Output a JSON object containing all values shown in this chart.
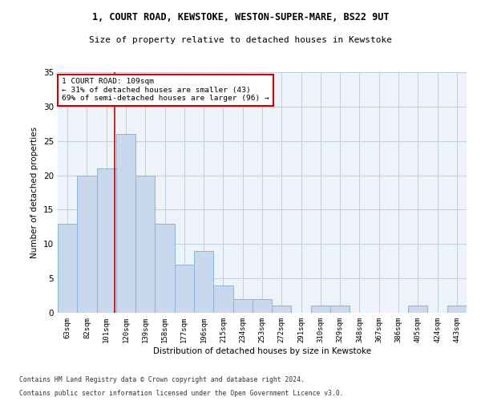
{
  "title1": "1, COURT ROAD, KEWSTOKE, WESTON-SUPER-MARE, BS22 9UT",
  "title2": "Size of property relative to detached houses in Kewstoke",
  "xlabel": "Distribution of detached houses by size in Kewstoke",
  "ylabel": "Number of detached properties",
  "categories": [
    "63sqm",
    "82sqm",
    "101sqm",
    "120sqm",
    "139sqm",
    "158sqm",
    "177sqm",
    "196sqm",
    "215sqm",
    "234sqm",
    "253sqm",
    "272sqm",
    "291sqm",
    "310sqm",
    "329sqm",
    "348sqm",
    "367sqm",
    "386sqm",
    "405sqm",
    "424sqm",
    "443sqm"
  ],
  "values": [
    13,
    20,
    21,
    26,
    20,
    13,
    7,
    9,
    4,
    2,
    2,
    1,
    0,
    1,
    1,
    0,
    0,
    0,
    1,
    0,
    1
  ],
  "bar_color": "#c8d9ee",
  "bar_edge_color": "#8ab4d8",
  "annotation_text_line1": "1 COURT ROAD: 109sqm",
  "annotation_text_line2": "← 31% of detached houses are smaller (43)",
  "annotation_text_line3": "69% of semi-detached houses are larger (96) →",
  "red_line_color": "#cc0000",
  "annotation_box_color": "#ffffff",
  "annotation_box_edge": "#cc0000",
  "ylim": [
    0,
    35
  ],
  "yticks": [
    0,
    5,
    10,
    15,
    20,
    25,
    30,
    35
  ],
  "footnote1": "Contains HM Land Registry data © Crown copyright and database right 2024.",
  "footnote2": "Contains public sector information licensed under the Open Government Licence v3.0.",
  "background_color": "#eef2f9"
}
